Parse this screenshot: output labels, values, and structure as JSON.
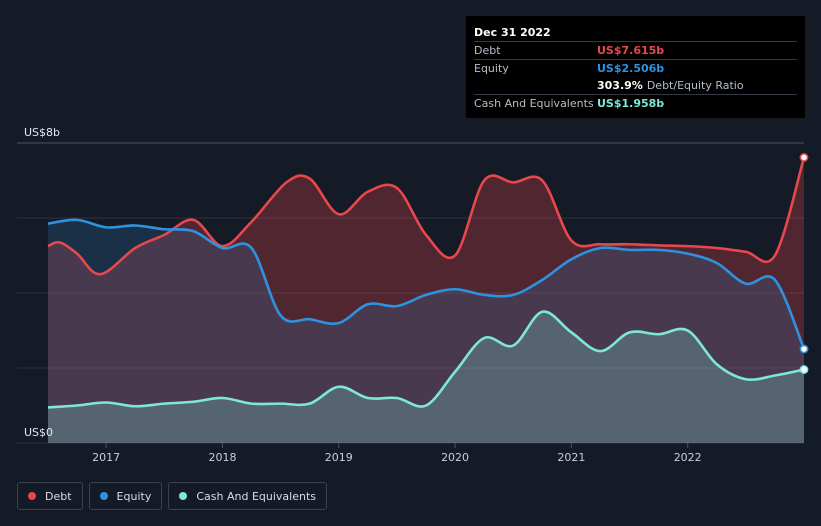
{
  "tooltip": {
    "date": "Dec 31 2022",
    "rows": [
      {
        "label": "Debt",
        "value": "US$7.615b",
        "color": "#e8474c"
      },
      {
        "label": "Equity",
        "value": "US$2.506b",
        "color": "#2f92e0"
      }
    ],
    "ratio_value": "303.9%",
    "ratio_label": "Debt/Equity Ratio",
    "cash": {
      "label": "Cash And Equivalents",
      "value": "US$1.958b",
      "color": "#7ee8d8"
    }
  },
  "legend": [
    {
      "label": "Debt",
      "color": "#e8474c"
    },
    {
      "label": "Equity",
      "color": "#2f92e0"
    },
    {
      "label": "Cash And Equivalents",
      "color": "#7ee8d8"
    }
  ],
  "chart_data": {
    "type": "area",
    "y_max_label": "US$8b",
    "y_min_label": "US$0",
    "ylim": [
      0,
      8
    ],
    "xlim": [
      2016.5,
      2023.0
    ],
    "x_ticks": [
      "2017",
      "2018",
      "2019",
      "2020",
      "2021",
      "2022"
    ],
    "grid": true,
    "legend_position": "bottom-left",
    "series": [
      {
        "name": "Debt",
        "color": "#e8474c",
        "points": [
          [
            2016.5,
            5.25
          ],
          [
            2016.6,
            5.35
          ],
          [
            2016.75,
            5.05
          ],
          [
            2016.95,
            4.5
          ],
          [
            2017.25,
            5.2
          ],
          [
            2017.5,
            5.55
          ],
          [
            2017.75,
            5.95
          ],
          [
            2018.0,
            5.25
          ],
          [
            2018.25,
            5.9
          ],
          [
            2018.55,
            6.95
          ],
          [
            2018.75,
            7.05
          ],
          [
            2019.0,
            6.1
          ],
          [
            2019.25,
            6.7
          ],
          [
            2019.5,
            6.8
          ],
          [
            2019.75,
            5.55
          ],
          [
            2020.0,
            5.0
          ],
          [
            2020.25,
            7.0
          ],
          [
            2020.5,
            6.95
          ],
          [
            2020.75,
            7.0
          ],
          [
            2021.0,
            5.4
          ],
          [
            2021.25,
            5.3
          ],
          [
            2021.5,
            5.3
          ],
          [
            2021.75,
            5.27
          ],
          [
            2022.0,
            5.25
          ],
          [
            2022.25,
            5.2
          ],
          [
            2022.5,
            5.1
          ],
          [
            2022.75,
            5.0
          ],
          [
            2023.0,
            7.615
          ]
        ]
      },
      {
        "name": "Equity",
        "color": "#2f92e0",
        "points": [
          [
            2016.5,
            5.85
          ],
          [
            2016.75,
            5.95
          ],
          [
            2017.0,
            5.75
          ],
          [
            2017.25,
            5.8
          ],
          [
            2017.5,
            5.7
          ],
          [
            2017.75,
            5.65
          ],
          [
            2018.0,
            5.2
          ],
          [
            2018.25,
            5.2
          ],
          [
            2018.5,
            3.4
          ],
          [
            2018.75,
            3.3
          ],
          [
            2019.0,
            3.2
          ],
          [
            2019.25,
            3.7
          ],
          [
            2019.5,
            3.65
          ],
          [
            2019.75,
            3.95
          ],
          [
            2020.0,
            4.1
          ],
          [
            2020.25,
            3.95
          ],
          [
            2020.5,
            3.95
          ],
          [
            2020.75,
            4.35
          ],
          [
            2021.0,
            4.9
          ],
          [
            2021.25,
            5.2
          ],
          [
            2021.5,
            5.15
          ],
          [
            2021.75,
            5.15
          ],
          [
            2022.0,
            5.05
          ],
          [
            2022.25,
            4.8
          ],
          [
            2022.5,
            4.25
          ],
          [
            2022.75,
            4.35
          ],
          [
            2023.0,
            2.506
          ]
        ]
      },
      {
        "name": "Cash And Equivalents",
        "color": "#7ee8d8",
        "points": [
          [
            2016.5,
            0.95
          ],
          [
            2016.75,
            1.0
          ],
          [
            2017.0,
            1.08
          ],
          [
            2017.25,
            0.98
          ],
          [
            2017.5,
            1.05
          ],
          [
            2017.75,
            1.1
          ],
          [
            2018.0,
            1.2
          ],
          [
            2018.25,
            1.05
          ],
          [
            2018.5,
            1.05
          ],
          [
            2018.75,
            1.05
          ],
          [
            2019.0,
            1.5
          ],
          [
            2019.25,
            1.2
          ],
          [
            2019.5,
            1.2
          ],
          [
            2019.75,
            1.0
          ],
          [
            2020.0,
            1.9
          ],
          [
            2020.25,
            2.8
          ],
          [
            2020.5,
            2.6
          ],
          [
            2020.75,
            3.5
          ],
          [
            2021.0,
            2.95
          ],
          [
            2021.25,
            2.45
          ],
          [
            2021.5,
            2.95
          ],
          [
            2021.75,
            2.9
          ],
          [
            2022.0,
            3.0
          ],
          [
            2022.25,
            2.1
          ],
          [
            2022.5,
            1.7
          ],
          [
            2022.75,
            1.8
          ],
          [
            2023.0,
            1.958
          ]
        ]
      }
    ]
  }
}
